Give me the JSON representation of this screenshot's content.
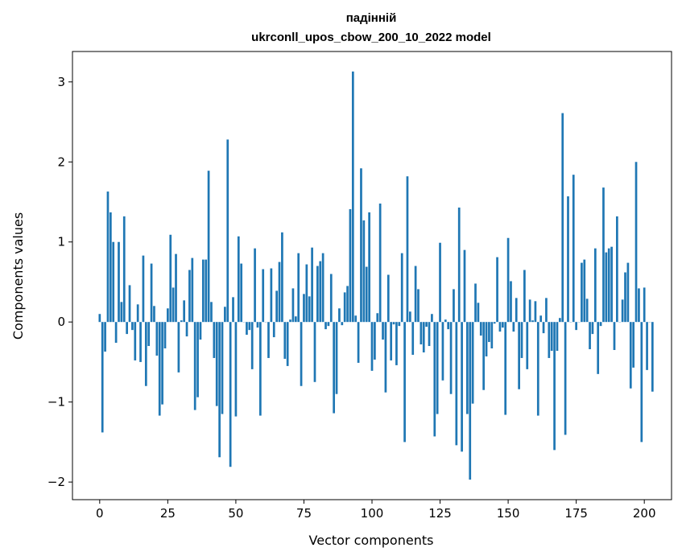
{
  "chart_data": {
    "type": "bar",
    "title_line1": "падінній",
    "title_line2": "ukrconll_upos_cbow_200_10_2022 model",
    "xlabel": "Vector components",
    "ylabel": "Components values",
    "xlim": [
      -10,
      210
    ],
    "ylim": [
      -2.22,
      3.38
    ],
    "x_ticks": [
      0,
      25,
      50,
      75,
      100,
      125,
      150,
      175,
      200
    ],
    "y_ticks": [
      -2,
      -1,
      0,
      1,
      2,
      3
    ],
    "y_tick_labels": [
      "−2",
      "−1",
      "0",
      "1",
      "2",
      "3"
    ],
    "bar_color": "#1f77b4",
    "grid": false,
    "values": [
      0.1,
      -1.38,
      -0.37,
      1.63,
      1.37,
      1.0,
      -0.26,
      1.0,
      0.25,
      1.32,
      -0.15,
      0.46,
      -0.1,
      -0.48,
      0.22,
      -0.5,
      0.83,
      -0.8,
      -0.3,
      0.73,
      0.2,
      -0.42,
      -1.17,
      -1.03,
      -0.33,
      0.17,
      1.09,
      0.43,
      0.85,
      -0.63,
      0.02,
      0.27,
      -0.18,
      0.65,
      0.8,
      -1.1,
      -0.94,
      -0.22,
      0.78,
      0.78,
      1.89,
      0.25,
      -0.45,
      -1.05,
      -1.69,
      -1.15,
      0.19,
      2.28,
      -1.81,
      0.31,
      -1.18,
      1.07,
      0.73,
      0.0,
      -0.16,
      -0.1,
      -0.59,
      0.92,
      -0.07,
      -1.17,
      0.66,
      0.0,
      -0.45,
      0.67,
      -0.19,
      0.39,
      0.75,
      1.12,
      -0.46,
      -0.55,
      0.03,
      0.42,
      0.07,
      0.86,
      -0.8,
      0.35,
      0.72,
      0.32,
      0.93,
      -0.75,
      0.7,
      0.76,
      0.86,
      -0.09,
      -0.05,
      0.6,
      -1.14,
      -0.9,
      0.17,
      -0.04,
      0.37,
      0.45,
      1.41,
      3.13,
      0.08,
      -0.51,
      1.92,
      1.27,
      0.69,
      1.37,
      -0.61,
      -0.47,
      0.11,
      1.48,
      -0.22,
      -0.88,
      0.59,
      -0.48,
      -0.03,
      -0.54,
      -0.05,
      0.86,
      -1.5,
      1.82,
      0.13,
      -0.41,
      0.7,
      0.41,
      -0.28,
      -0.38,
      -0.06,
      -0.3,
      0.1,
      -1.43,
      -1.15,
      0.99,
      -0.73,
      0.03,
      -0.09,
      -0.9,
      0.41,
      -1.54,
      1.43,
      -1.62,
      0.9,
      -1.15,
      -1.97,
      -1.02,
      0.48,
      0.24,
      -0.17,
      -0.85,
      -0.43,
      -0.25,
      -0.33,
      -0.02,
      0.81,
      -0.12,
      -0.07,
      -1.16,
      1.05,
      0.51,
      -0.12,
      0.3,
      -0.84,
      -0.45,
      0.65,
      -0.59,
      0.28,
      0.02,
      0.26,
      -1.17,
      0.08,
      -0.14,
      0.3,
      -0.45,
      -0.36,
      -1.6,
      -0.36,
      0.05,
      2.61,
      -1.41,
      1.57,
      0.0,
      1.84,
      -0.1,
      0.0,
      0.74,
      0.78,
      0.29,
      -0.34,
      -0.15,
      0.92,
      -0.65,
      -0.05,
      1.68,
      0.87,
      0.92,
      0.94,
      -0.35,
      1.32,
      0.0,
      0.28,
      0.62,
      0.74,
      -0.83,
      -0.57,
      2.0,
      0.42,
      -1.5,
      0.43,
      -0.6,
      0.0,
      -0.87
    ]
  }
}
